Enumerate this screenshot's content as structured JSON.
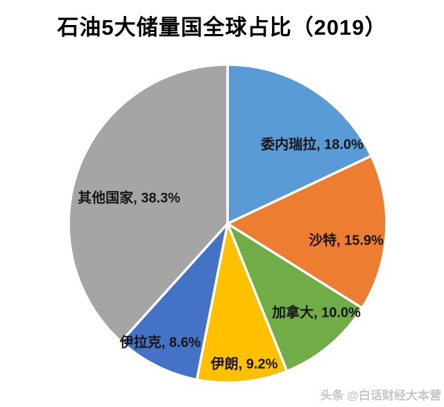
{
  "chart_data": {
    "type": "pie",
    "title": "石油5大储量国全球占比（2019）",
    "start_angle_deg_from_top": 0,
    "direction": "clockwise",
    "legend": "none",
    "label_format": "category, percent",
    "slices": [
      {
        "name": "委内瑞拉",
        "value": 18.0,
        "label": "委内瑞拉, 18.0%",
        "color": "#5B9BD5"
      },
      {
        "name": "沙特",
        "value": 15.9,
        "label": "沙特, 15.9%",
        "color": "#ED7D31"
      },
      {
        "name": "加拿大",
        "value": 10.0,
        "label": "加拿大, 10.0%",
        "color": "#70AD47"
      },
      {
        "name": "伊朗",
        "value": 9.2,
        "label": "伊朗, 9.2%",
        "color": "#FFC000"
      },
      {
        "name": "伊拉克",
        "value": 8.6,
        "label": "伊拉克, 8.6%",
        "color": "#4472C4"
      },
      {
        "name": "其他国家",
        "value": 38.3,
        "label": "其他国家, 38.3%",
        "color": "#A5A5A5"
      }
    ]
  },
  "watermark": {
    "text": "头条 @白话财经大本营"
  }
}
